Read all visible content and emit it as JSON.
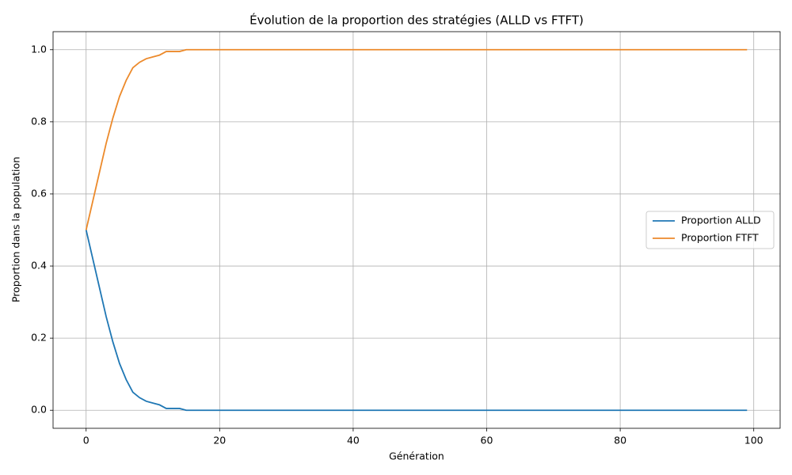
{
  "chart_data": {
    "type": "line",
    "title": "Évolution de la proportion des stratégies (ALLD vs FTFT)",
    "x_label": "Génération",
    "y_label": "Proportion dans la population",
    "x": [
      0,
      1,
      2,
      3,
      4,
      5,
      6,
      7,
      8,
      9,
      10,
      11,
      12,
      13,
      14,
      15,
      16,
      17,
      18,
      19,
      20,
      21,
      22,
      23,
      24,
      25,
      26,
      27,
      28,
      29,
      30,
      31,
      32,
      33,
      34,
      35,
      36,
      37,
      38,
      39,
      40,
      41,
      42,
      43,
      44,
      45,
      46,
      47,
      48,
      49,
      50,
      51,
      52,
      53,
      54,
      55,
      56,
      57,
      58,
      59,
      60,
      61,
      62,
      63,
      64,
      65,
      66,
      67,
      68,
      69,
      70,
      71,
      72,
      73,
      74,
      75,
      76,
      77,
      78,
      79,
      80,
      81,
      82,
      83,
      84,
      85,
      86,
      87,
      88,
      89,
      90,
      91,
      92,
      93,
      94,
      95,
      96,
      97,
      98,
      99
    ],
    "series": [
      {
        "name": "Proportion ALLD",
        "color": "#1f77b4",
        "values": [
          0.5,
          0.42,
          0.34,
          0.26,
          0.19,
          0.13,
          0.085,
          0.05,
          0.035,
          0.025,
          0.02,
          0.015,
          0.005,
          0.005,
          0.005,
          0,
          0,
          0,
          0,
          0,
          0,
          0,
          0,
          0,
          0,
          0,
          0,
          0,
          0,
          0,
          0,
          0,
          0,
          0,
          0,
          0,
          0,
          0,
          0,
          0,
          0,
          0,
          0,
          0,
          0,
          0,
          0,
          0,
          0,
          0,
          0,
          0,
          0,
          0,
          0,
          0,
          0,
          0,
          0,
          0,
          0,
          0,
          0,
          0,
          0,
          0,
          0,
          0,
          0,
          0,
          0,
          0,
          0,
          0,
          0,
          0,
          0,
          0,
          0,
          0,
          0,
          0,
          0,
          0,
          0,
          0,
          0,
          0,
          0,
          0,
          0,
          0,
          0,
          0,
          0,
          0,
          0,
          0,
          0,
          0
        ]
      },
      {
        "name": "Proportion FTFT",
        "color": "#ec8a2b",
        "values": [
          0.5,
          0.58,
          0.66,
          0.74,
          0.81,
          0.87,
          0.915,
          0.95,
          0.965,
          0.975,
          0.98,
          0.985,
          0.995,
          0.995,
          0.995,
          1,
          1,
          1,
          1,
          1,
          1,
          1,
          1,
          1,
          1,
          1,
          1,
          1,
          1,
          1,
          1,
          1,
          1,
          1,
          1,
          1,
          1,
          1,
          1,
          1,
          1,
          1,
          1,
          1,
          1,
          1,
          1,
          1,
          1,
          1,
          1,
          1,
          1,
          1,
          1,
          1,
          1,
          1,
          1,
          1,
          1,
          1,
          1,
          1,
          1,
          1,
          1,
          1,
          1,
          1,
          1,
          1,
          1,
          1,
          1,
          1,
          1,
          1,
          1,
          1,
          1,
          1,
          1,
          1,
          1,
          1,
          1,
          1,
          1,
          1,
          1,
          1,
          1,
          1,
          1,
          1,
          1,
          1,
          1,
          1
        ]
      }
    ],
    "xlim": [
      -4.95,
      103.95
    ],
    "xticks": [
      0,
      20,
      40,
      60,
      80,
      100
    ],
    "ylim": [
      -0.05,
      1.05
    ],
    "yticks": [
      {
        "value": 0,
        "label": "0.0"
      },
      0.2,
      0.4,
      0.6,
      0.8,
      {
        "value": 1,
        "label": "1.0"
      }
    ],
    "grid": true,
    "legend": "center right"
  }
}
